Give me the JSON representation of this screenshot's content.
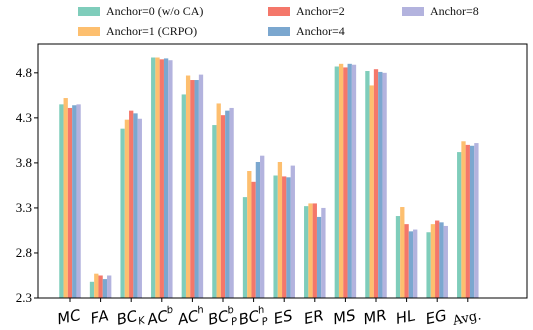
{
  "chart_data": {
    "type": "bar",
    "categories": [
      {
        "base": "MC",
        "sup": "",
        "sub": ""
      },
      {
        "base": "FA",
        "sup": "",
        "sub": ""
      },
      {
        "base": "BC",
        "sup": "",
        "sub": "K"
      },
      {
        "base": "AC",
        "sup": "b",
        "sub": ""
      },
      {
        "base": "AC",
        "sup": "h",
        "sub": ""
      },
      {
        "base": "BC",
        "sup": "b",
        "sub": "P"
      },
      {
        "base": "BC",
        "sup": "h",
        "sub": "P"
      },
      {
        "base": "ES",
        "sup": "",
        "sub": ""
      },
      {
        "base": "ER",
        "sup": "",
        "sub": ""
      },
      {
        "base": "MS",
        "sup": "",
        "sub": ""
      },
      {
        "base": "MR",
        "sup": "",
        "sub": ""
      },
      {
        "base": "HL",
        "sup": "",
        "sub": ""
      },
      {
        "base": "EG",
        "sup": "",
        "sub": ""
      },
      {
        "base": "Avg.",
        "sup": "",
        "sub": ""
      }
    ],
    "series": [
      {
        "name": "Anchor=0 (w/o CA)",
        "color": "#7fcdbb",
        "values": [
          4.45,
          2.48,
          4.18,
          4.97,
          4.56,
          4.22,
          3.42,
          3.66,
          3.32,
          4.87,
          4.82,
          3.21,
          3.03,
          3.92
        ]
      },
      {
        "name": "Anchor=1 (CRPO)",
        "color": "#fdbf6f",
        "values": [
          4.52,
          2.57,
          4.28,
          4.97,
          4.77,
          4.46,
          3.71,
          3.81,
          3.35,
          4.9,
          4.66,
          3.31,
          3.12,
          4.04
        ]
      },
      {
        "name": "Anchor=2",
        "color": "#f4776a",
        "values": [
          4.41,
          2.55,
          4.38,
          4.95,
          4.72,
          4.33,
          3.59,
          3.65,
          3.35,
          4.86,
          4.84,
          3.12,
          3.16,
          4.0
        ]
      },
      {
        "name": "Anchor=4",
        "color": "#7ba7cf",
        "values": [
          4.44,
          2.51,
          4.35,
          4.96,
          4.72,
          4.38,
          3.81,
          3.64,
          3.2,
          4.9,
          4.81,
          3.04,
          3.14,
          3.99
        ]
      },
      {
        "name": "Anchor=8",
        "color": "#b3b3de",
        "values": [
          4.45,
          2.55,
          4.29,
          4.94,
          4.78,
          4.41,
          3.88,
          3.77,
          3.3,
          4.89,
          4.8,
          3.06,
          3.1,
          4.02
        ]
      }
    ],
    "yticks": [
      "2.3",
      "2.8",
      "3.3",
      "3.8",
      "4.3",
      "4.8"
    ],
    "ylim": [
      2.3,
      5.12
    ],
    "legend_position": "top",
    "grid": false
  }
}
